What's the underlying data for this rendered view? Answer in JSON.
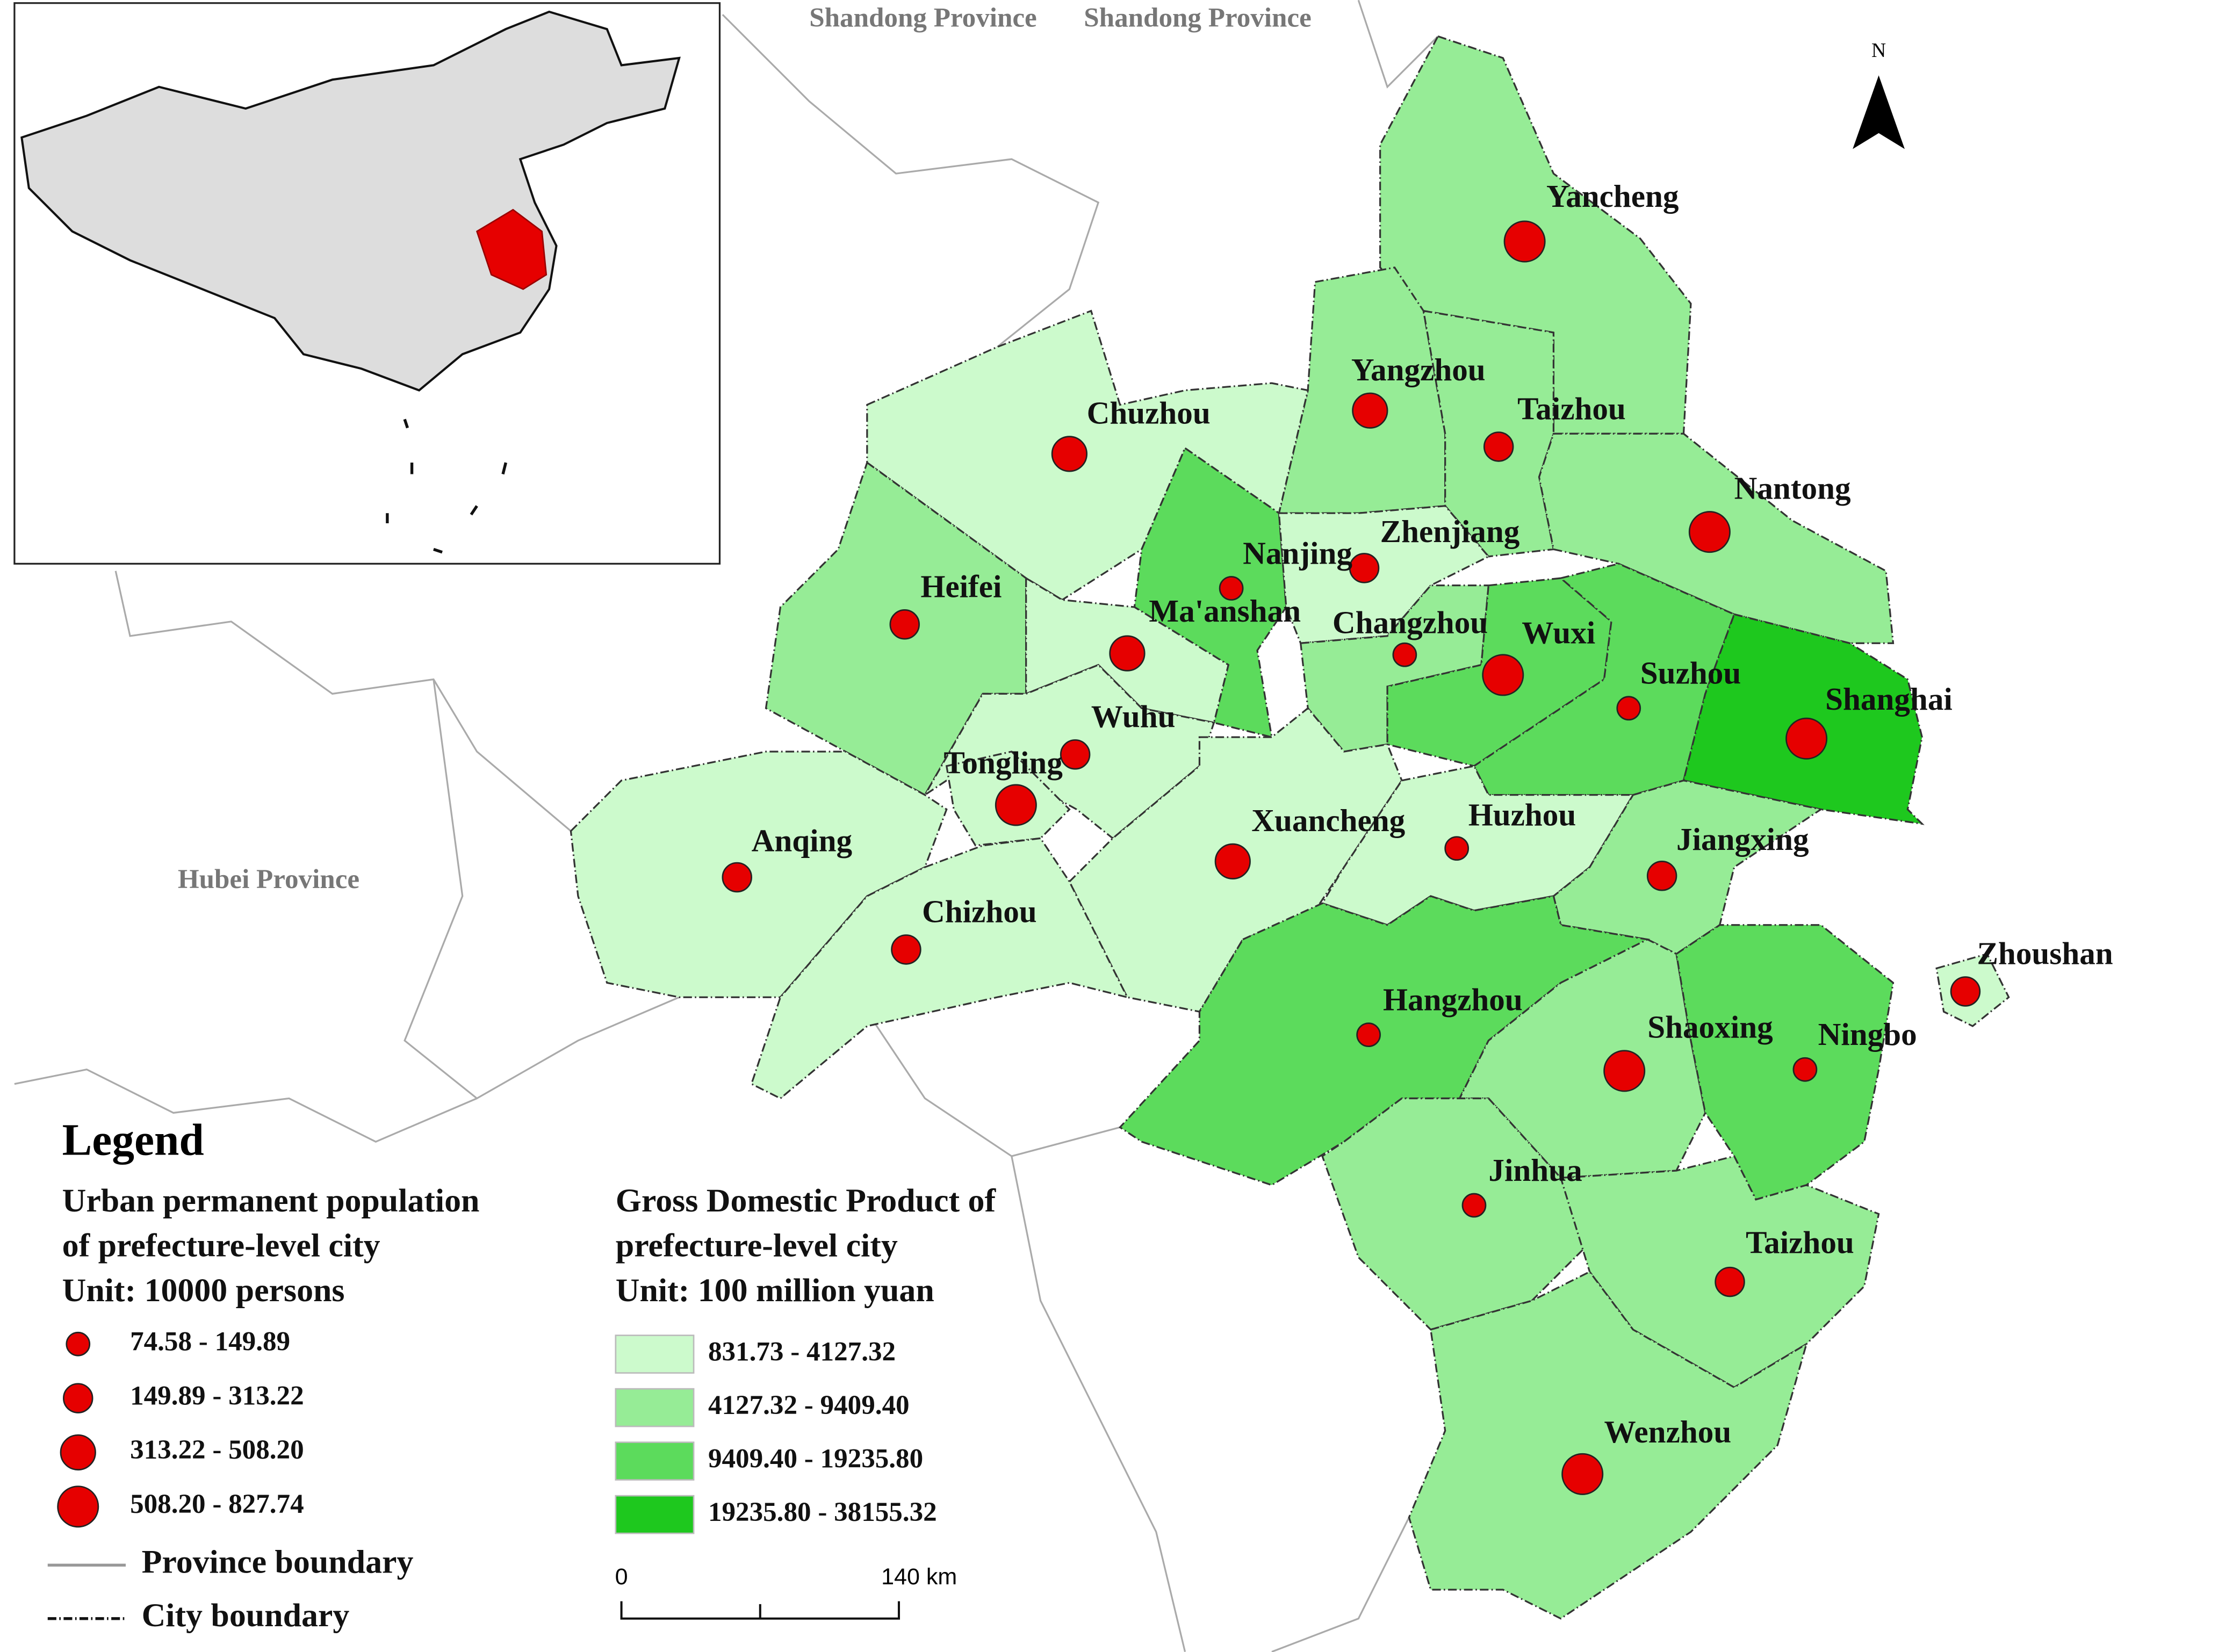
{
  "map": {
    "province_labels": [
      "Shandong Province",
      "Shandong Province",
      "Hubei Province"
    ],
    "north": "N",
    "cities": [
      {
        "name": "Yancheng",
        "population_class": 3,
        "gdp_class": 1
      },
      {
        "name": "Yangzhou",
        "population_class": 2,
        "gdp_class": 1
      },
      {
        "name": "Taizhou",
        "population_class": 1,
        "gdp_class": 1
      },
      {
        "name": "Chuzhou",
        "population_class": 2,
        "gdp_class": 0
      },
      {
        "name": "Nantong",
        "population_class": 3,
        "gdp_class": 1
      },
      {
        "name": "Nanjing",
        "population_class": 0,
        "gdp_class": 2
      },
      {
        "name": "Zhenjiang",
        "population_class": 1,
        "gdp_class": 0
      },
      {
        "name": "Heifei",
        "population_class": 1,
        "gdp_class": 1
      },
      {
        "name": "Ma'anshan",
        "population_class": 2,
        "gdp_class": 0
      },
      {
        "name": "Changzhou",
        "population_class": 0,
        "gdp_class": 1
      },
      {
        "name": "Wuxi",
        "population_class": 3,
        "gdp_class": 2
      },
      {
        "name": "Suzhou",
        "population_class": 0,
        "gdp_class": 2
      },
      {
        "name": "Shanghai",
        "population_class": 3,
        "gdp_class": 3
      },
      {
        "name": "Wuhu",
        "population_class": 1,
        "gdp_class": 0
      },
      {
        "name": "Tongling",
        "population_class": 3,
        "gdp_class": 0
      },
      {
        "name": "Anqing",
        "population_class": 1,
        "gdp_class": 0
      },
      {
        "name": "Xuancheng",
        "population_class": 2,
        "gdp_class": 0
      },
      {
        "name": "Huzhou",
        "population_class": 0,
        "gdp_class": 0
      },
      {
        "name": "Jiangxing",
        "population_class": 1,
        "gdp_class": 1
      },
      {
        "name": "Chizhou",
        "population_class": 1,
        "gdp_class": 0
      },
      {
        "name": "Zhoushan",
        "population_class": 1,
        "gdp_class": 0
      },
      {
        "name": "Hangzhou",
        "population_class": 0,
        "gdp_class": 2
      },
      {
        "name": "Shaoxing",
        "population_class": 3,
        "gdp_class": 1
      },
      {
        "name": "Ningbo",
        "population_class": 0,
        "gdp_class": 2
      },
      {
        "name": "Jinhua",
        "population_class": 0,
        "gdp_class": 1
      },
      {
        "name": "Taizhou",
        "population_class": 1,
        "gdp_class": 1
      },
      {
        "name": "Wenzhou",
        "population_class": 3,
        "gdp_class": 1
      }
    ],
    "legend": {
      "title": "Legend",
      "population": {
        "title": [
          "Urban permanent population",
          "of prefecture-level city",
          "Unit: 10000 persons"
        ],
        "color": "#e60000",
        "classes": [
          "74.58 - 149.89",
          "149.89 - 313.22",
          "313.22 - 508.20",
          "508.20 - 827.74"
        ]
      },
      "gdp": {
        "title": [
          "Gross Domestic Product of",
          "prefecture-level city",
          "Unit: 100 million yuan"
        ],
        "classes": [
          {
            "label": "831.73 - 4127.32",
            "color": "#ccfacc"
          },
          {
            "label": "4127.32 - 9409.40",
            "color": "#96ec96"
          },
          {
            "label": "9409.40 - 19235.80",
            "color": "#5cdb5c"
          },
          {
            "label": "19235.80 - 38155.32",
            "color": "#1ec81e"
          }
        ]
      },
      "boundaries": [
        "Province boundary",
        "City boundary"
      ]
    },
    "scale_bar": [
      "0",
      "140 km"
    ]
  }
}
